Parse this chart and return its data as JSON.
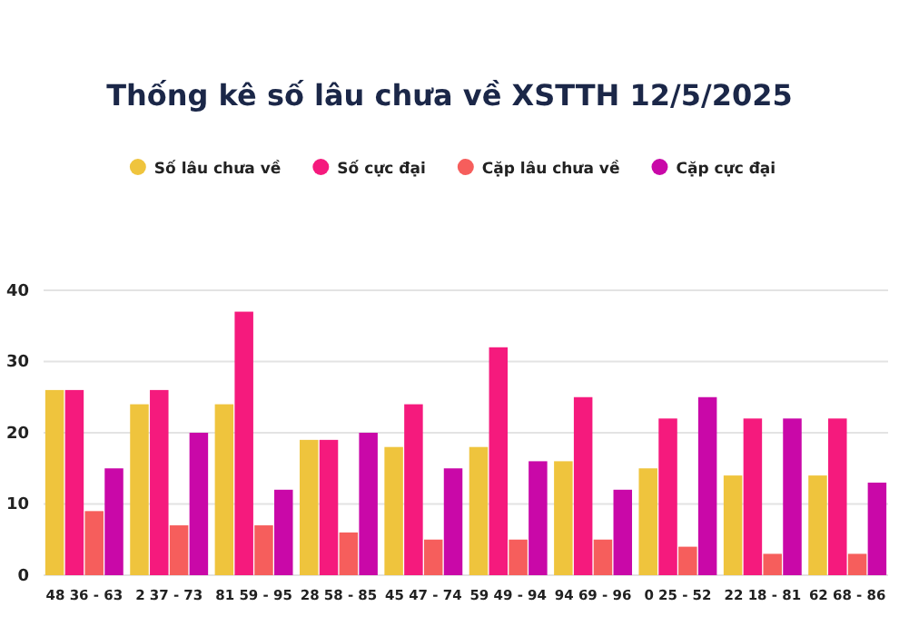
{
  "chart_data": {
    "type": "bar",
    "title": "Thống kê số lâu chưa về XSTTH 12/5/2025",
    "categories": [
      "48 36 - 63",
      "2 37 - 73",
      "81 59 - 95",
      "28 58 - 85",
      "45 47 - 74",
      "59 49 - 94",
      "94 69 - 96",
      "0 25 - 52",
      "22 18 - 81",
      "62 68 - 86"
    ],
    "series": [
      {
        "name": "Số lâu chưa về",
        "color": "#efc43d",
        "values": [
          26,
          24,
          24,
          19,
          18,
          18,
          16,
          15,
          14,
          14
        ]
      },
      {
        "name": "Số cực đại",
        "color": "#f51a7d",
        "values": [
          26,
          26,
          37,
          19,
          24,
          32,
          25,
          22,
          22,
          22
        ]
      },
      {
        "name": "Cặp lâu chưa về",
        "color": "#f65e5c",
        "values": [
          9,
          7,
          7,
          6,
          5,
          5,
          5,
          4,
          3,
          3
        ]
      },
      {
        "name": "Cặp cực đại",
        "color": "#c908a8",
        "values": [
          15,
          20,
          12,
          20,
          15,
          16,
          12,
          25,
          22,
          13
        ]
      }
    ],
    "ylim": [
      0,
      40
    ],
    "yticks": [
      0,
      10,
      20,
      30,
      40
    ],
    "grid": "y",
    "legend": "top"
  }
}
